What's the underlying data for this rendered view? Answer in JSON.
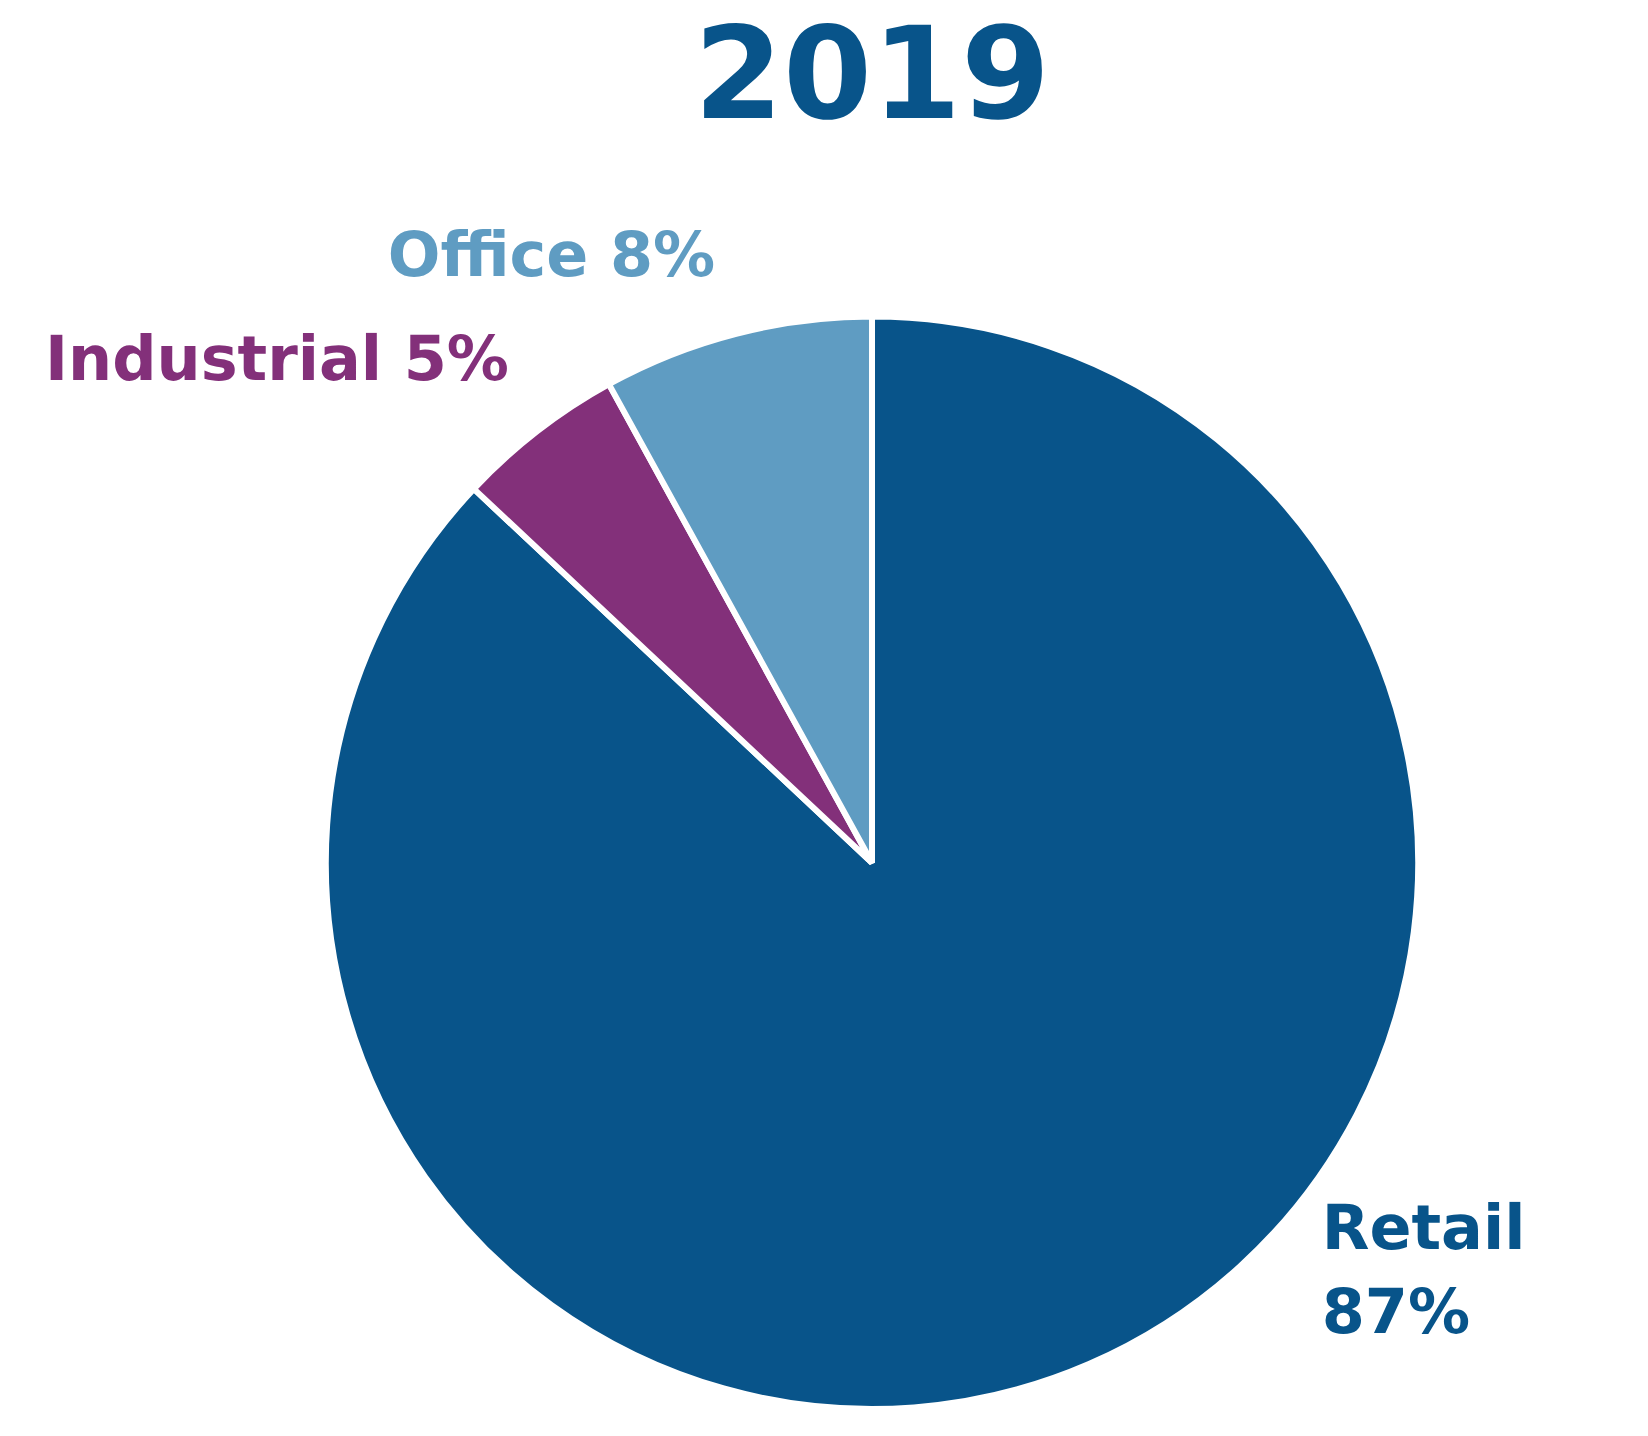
{
  "chart_data": {
    "type": "pie",
    "title": "2019",
    "categories": [
      "Retail",
      "Industrial",
      "Office"
    ],
    "values": [
      87,
      5,
      8
    ],
    "value_labels": [
      "87%",
      "5%",
      "8%"
    ],
    "colors": [
      "#08548a",
      "#83307a",
      "#5f9cc2"
    ],
    "legend": false
  }
}
